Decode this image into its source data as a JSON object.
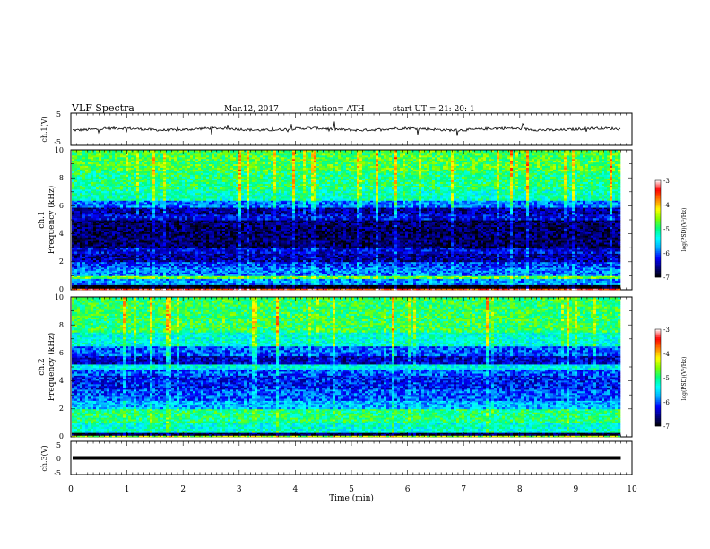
{
  "header": {
    "title": "VLF  Spectra",
    "date": "Mar.12, 2017",
    "station": "station= ATH",
    "start": "start  UT  =    21: 20: 1"
  },
  "chart_data": [
    {
      "type": "line",
      "name": "ch1-waveform",
      "ylabel": "ch.1(V)",
      "ylim": [
        -5,
        5
      ],
      "yticks": [
        "5",
        "-5"
      ],
      "xlim": [
        0,
        10
      ],
      "typical_value": 0,
      "noise_amplitude_v": 0.8,
      "spike_amplitude_v": 2.2
    },
    {
      "type": "heatmap",
      "name": "ch1-spectrogram",
      "ylabel": "ch.1\nFrequency (kHz)",
      "ylim": [
        0,
        10
      ],
      "yticks": [
        "10",
        "8",
        "6",
        "4",
        "2",
        "0"
      ],
      "xlim": [
        0,
        9.8
      ],
      "colorbar": {
        "label": "log(PSD)(V²/Hz)",
        "range": [
          -7,
          -3
        ],
        "ticks": [
          "-3",
          "-4",
          "-5",
          "-6",
          "-7"
        ]
      },
      "bands_khz_logpsd": [
        [
          0,
          0.1,
          -3.5
        ],
        [
          0.1,
          0.35,
          -7
        ],
        [
          0.35,
          0.8,
          -5.8
        ],
        [
          0.8,
          1.0,
          -4.7
        ],
        [
          1.0,
          1.6,
          -5.9
        ],
        [
          1.6,
          2.0,
          -6.1
        ],
        [
          2.0,
          2.6,
          -6.5
        ],
        [
          2.6,
          3.0,
          -6.3
        ],
        [
          3.0,
          5.0,
          -6.7
        ],
        [
          5.0,
          5.4,
          -6.3
        ],
        [
          5.4,
          5.9,
          -6.5
        ],
        [
          5.9,
          6.4,
          -5.9
        ],
        [
          6.4,
          7.2,
          -5.2
        ],
        [
          7.2,
          8.5,
          -5.0
        ],
        [
          8.5,
          10.0,
          -4.8
        ]
      ]
    },
    {
      "type": "heatmap",
      "name": "ch2-spectrogram",
      "ylabel": "ch.2\nFrequency (kHz)",
      "ylim": [
        0,
        10
      ],
      "yticks": [
        "10",
        "8",
        "6",
        "4",
        "2",
        "0"
      ],
      "xlim": [
        0,
        9.8
      ],
      "colorbar": {
        "label": "log(PSD)(V²/Hz)",
        "range": [
          -7,
          -3
        ],
        "ticks": [
          "-3",
          "-4",
          "-5",
          "-6",
          "-7"
        ]
      },
      "bands_khz_logpsd": [
        [
          0,
          0.1,
          -4.5
        ],
        [
          0.1,
          0.3,
          -6.8
        ],
        [
          0.3,
          1.0,
          -5.3
        ],
        [
          1.0,
          2.0,
          -5.0
        ],
        [
          2.0,
          2.6,
          -5.7
        ],
        [
          2.6,
          3.4,
          -6.0
        ],
        [
          3.4,
          4.4,
          -6.2
        ],
        [
          4.4,
          4.8,
          -6.0
        ],
        [
          4.8,
          5.2,
          -5.4
        ],
        [
          5.2,
          5.8,
          -6.4
        ],
        [
          5.8,
          6.5,
          -6.0
        ],
        [
          6.5,
          7.5,
          -5.3
        ],
        [
          7.5,
          10.0,
          -4.9
        ]
      ]
    },
    {
      "type": "line",
      "name": "ch3-waveform",
      "ylabel": "ch.3(V)",
      "ylim": [
        -5,
        5
      ],
      "yticks": [
        "5",
        "0",
        "-5"
      ],
      "xlim": [
        0,
        9.8
      ],
      "typical_value": 0
    }
  ],
  "xaxis": {
    "label": "Time  (min)",
    "ticks": [
      "0",
      "1",
      "2",
      "3",
      "4",
      "5",
      "6",
      "7",
      "8",
      "9",
      "10"
    ]
  },
  "colors": {
    "colormap": [
      "#000000",
      "#000080",
      "#0000ff",
      "#00aaff",
      "#00ffff",
      "#00ff80",
      "#80ff00",
      "#ffff00",
      "#ff8000",
      "#ff0000",
      "#ffffff"
    ]
  }
}
